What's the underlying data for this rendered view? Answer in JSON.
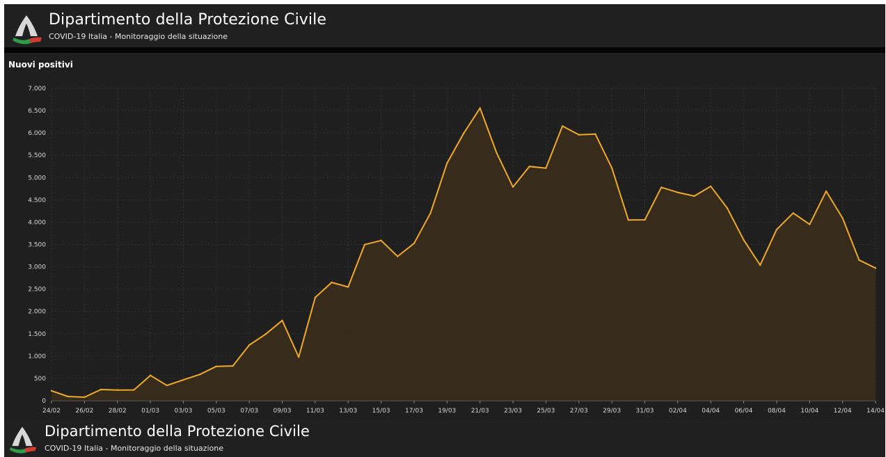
{
  "header": {
    "title": "Dipartimento della Protezione Civile",
    "subtitle": "COVID-19 Italia - Monitoraggio della situazione",
    "logo_icon": "protezione-civile-logo"
  },
  "panel": {
    "title": "Nuovi positivi"
  },
  "footer": {
    "title": "Dipartimento della Protezione Civile",
    "subtitle": "COVID-19 Italia - Monitoraggio della situazione"
  },
  "colors": {
    "background": "#1f1f1f",
    "line": "#f0a92a",
    "area": "#3a2d1c",
    "grid": "#333333"
  },
  "chart_data": {
    "type": "area",
    "title": "Nuovi positivi",
    "xlabel": "",
    "ylabel": "",
    "ylim": [
      0,
      7000
    ],
    "yticks": [
      0,
      500,
      1000,
      1500,
      2000,
      2500,
      3000,
      3500,
      4000,
      4500,
      5000,
      5500,
      6000,
      6500,
      7000
    ],
    "ytick_labels": [
      "0",
      "500",
      "1.000",
      "1.500",
      "2.000",
      "2.500",
      "3.000",
      "3.500",
      "4.000",
      "4.500",
      "5.000",
      "5.500",
      "6.000",
      "6.500",
      "7.000"
    ],
    "x_tick_labels": [
      "24/02",
      "26/02",
      "28/02",
      "01/03",
      "03/03",
      "05/03",
      "07/03",
      "09/03",
      "11/03",
      "13/03",
      "15/03",
      "17/03",
      "19/03",
      "21/03",
      "23/03",
      "25/03",
      "27/03",
      "29/03",
      "31/03",
      "02/04",
      "04/04",
      "06/04",
      "08/04",
      "10/04",
      "12/04",
      "14/04"
    ],
    "grid": true,
    "series": [
      {
        "values": [
          221,
          93,
          78,
          250,
          238,
          240,
          566,
          342,
          466,
          587,
          769,
          778,
          1247,
          1492,
          1797,
          977,
          2313,
          2651,
          2547,
          3497,
          3590,
          3233,
          3526,
          4207,
          5322,
          5986,
          6557,
          5560,
          4789,
          5249,
          5210,
          6153,
          5959,
          5974,
          5217,
          4050,
          4053,
          4782,
          4668,
          4585,
          4805,
          4316,
          3599,
          3039,
          3836,
          4204,
          3951,
          4694,
          4092,
          3153,
          2972
        ]
      }
    ]
  }
}
